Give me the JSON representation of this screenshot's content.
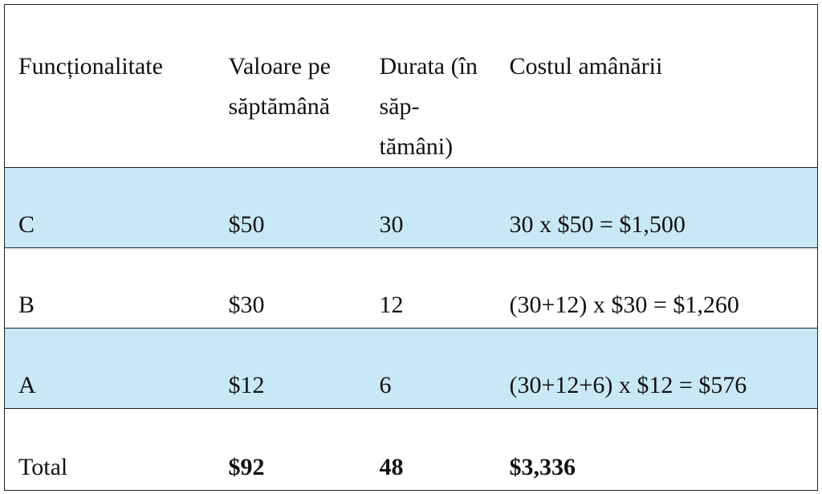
{
  "table": {
    "header": [
      "Funcționalitate",
      "Valoare pe săptămână",
      "Durata (în săp-tămâni)",
      "Costul amânării"
    ],
    "rows": [
      [
        "C",
        "$50",
        "30",
        "30 x $50 = $1,500"
      ],
      [
        "B",
        "$30",
        "12",
        "(30+12) x $30 = $1,260"
      ],
      [
        "A",
        "$12",
        "6",
        "(30+12+6) x $12 = $576"
      ]
    ],
    "total": [
      "Total",
      "$92",
      "48",
      "$3,336"
    ]
  }
}
